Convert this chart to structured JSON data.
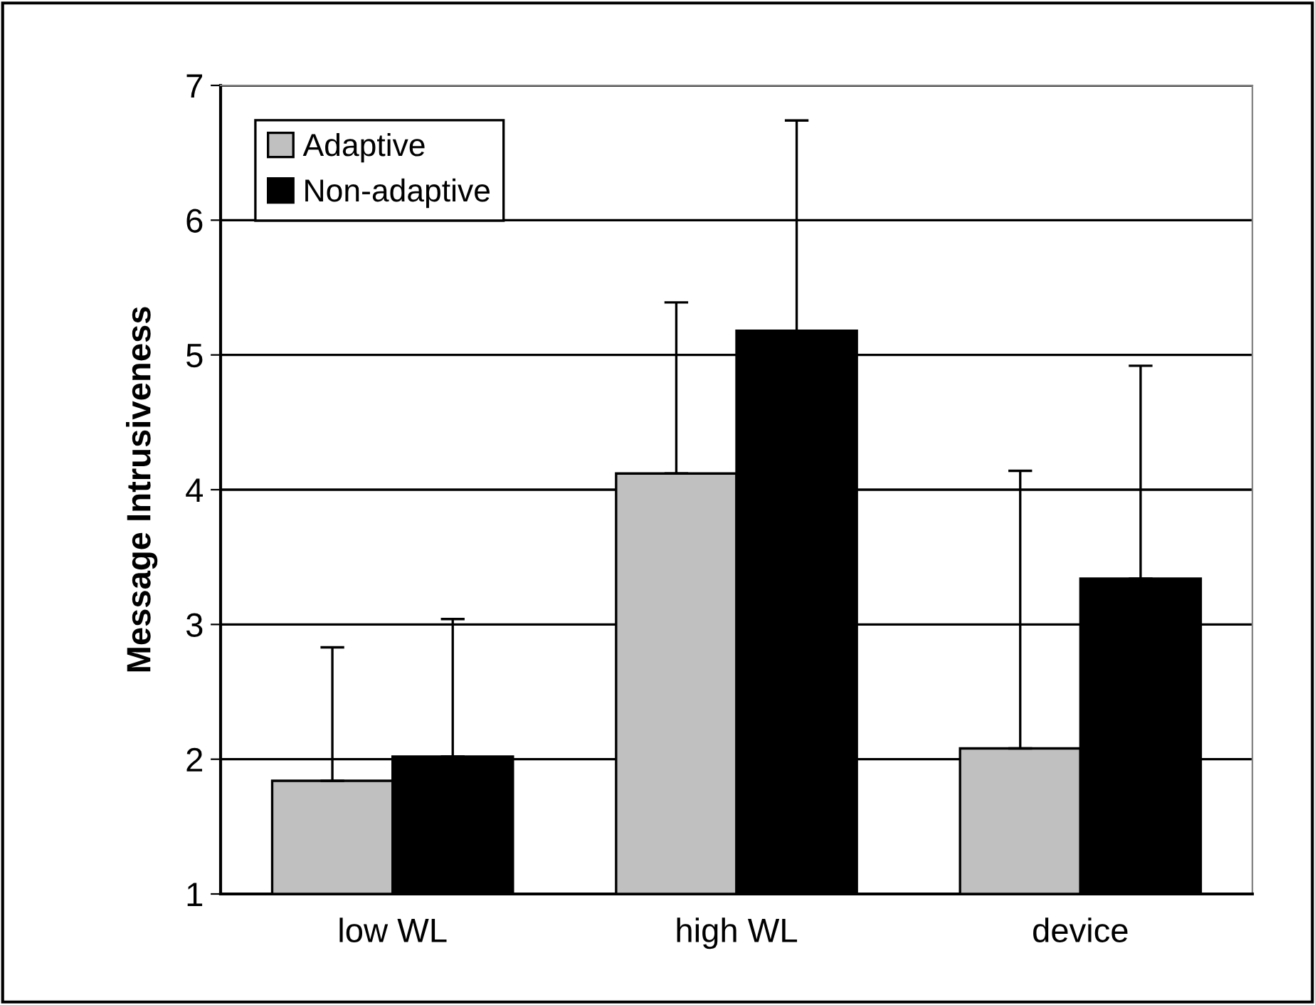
{
  "chart_data": {
    "type": "bar",
    "ylabel": "Message Intrusiveness",
    "categories": [
      "low WL",
      "high WL",
      "device"
    ],
    "series": [
      {
        "name": "Adaptive",
        "color": "#c0c0c0",
        "values": [
          1.84,
          4.12,
          2.08
        ],
        "errors": [
          [
            1.84,
            2.83
          ],
          [
            4.12,
            5.39
          ],
          [
            2.08,
            4.14
          ]
        ]
      },
      {
        "name": "Non-adaptive",
        "color": "#000000",
        "values": [
          2.02,
          5.18,
          3.34
        ],
        "errors": [
          [
            2.02,
            3.04
          ],
          [
            5.18,
            6.74
          ],
          [
            3.34,
            4.92
          ]
        ]
      }
    ],
    "ylim": [
      1,
      7
    ],
    "yticks": [
      1,
      2,
      3,
      4,
      5,
      6,
      7
    ],
    "grid": "y",
    "legend": "top left"
  }
}
